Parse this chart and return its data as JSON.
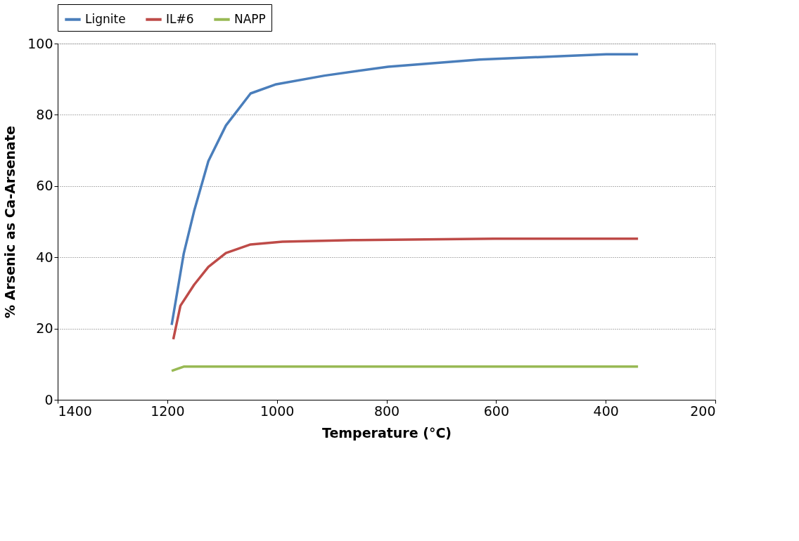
{
  "chart_data": {
    "type": "line",
    "xlabel": "Temperature (°C)",
    "ylabel": "% Arsenic as  Ca-Arsenate",
    "xlim": [
      1400,
      200
    ],
    "xticks": [
      1400,
      1200,
      1000,
      800,
      600,
      400,
      200
    ],
    "ylim": [
      0,
      100
    ],
    "yticks": [
      0,
      20,
      40,
      60,
      80,
      100
    ],
    "grid": "y",
    "legend": "top",
    "marker": "none",
    "line_style": "solid",
    "series": [
      {
        "name": "Lignite",
        "color": "#4a7ebb",
        "x": [
          1192,
          1170,
          1151,
          1125,
          1093,
          1048,
          1003,
          913,
          797,
          630,
          476,
          399,
          341
        ],
        "values": [
          21,
          41,
          53,
          67,
          77,
          86,
          88.5,
          91,
          93.5,
          95.5,
          96.5,
          97,
          97
        ]
      },
      {
        "name": "IL#6",
        "color": "#be4b48",
        "x": [
          1189,
          1176,
          1151,
          1125,
          1093,
          1048,
          990,
          861,
          604,
          341
        ],
        "values": [
          17,
          26.4,
          32.3,
          37.3,
          41.2,
          43.6,
          44.4,
          44.8,
          45.2,
          45.2
        ]
      },
      {
        "name": "NAPP",
        "color": "#98b954",
        "x": [
          1192,
          1170,
          341
        ],
        "values": [
          8.1,
          9.3,
          9.3
        ]
      }
    ]
  }
}
